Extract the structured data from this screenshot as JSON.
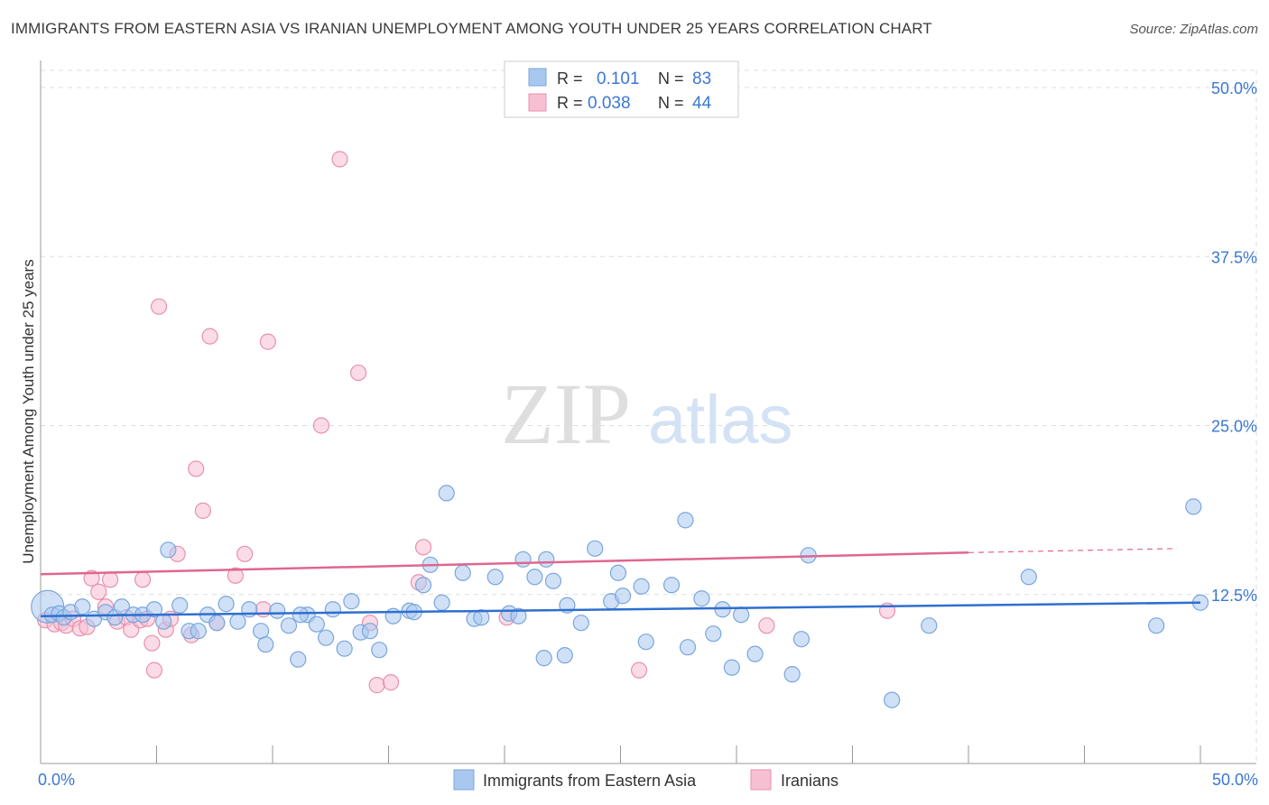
{
  "header": {
    "title": "IMMIGRANTS FROM EASTERN ASIA VS IRANIAN UNEMPLOYMENT AMONG YOUTH UNDER 25 YEARS CORRELATION CHART",
    "source": "Source: ZipAtlas.com"
  },
  "watermark": {
    "zip": "ZIP",
    "atlas": "atlas"
  },
  "legend_top": {
    "rows": [
      {
        "r_label": "R =",
        "r_value": "0.101",
        "n_label": "N =",
        "n_value": "83"
      },
      {
        "r_label": "R =",
        "r_value": "0.038",
        "n_label": "N =",
        "n_value": "44"
      }
    ]
  },
  "chart_data": {
    "type": "scatter",
    "title": "IMMIGRANTS FROM EASTERN ASIA VS IRANIAN UNEMPLOYMENT AMONG YOUTH UNDER 25 YEARS CORRELATION CHART",
    "xlabel": "",
    "ylabel": "Unemployment Among Youth under 25 years",
    "xlim": [
      0,
      50
    ],
    "ylim": [
      0,
      50
    ],
    "x_tick_labels": [
      "0.0%",
      "50.0%"
    ],
    "y_ticks": [
      12.5,
      25.0,
      37.5,
      50.0
    ],
    "y_tick_labels": [
      "12.5%",
      "25.0%",
      "37.5%",
      "50.0%"
    ],
    "colors": {
      "blue_fill": "#a9c8f0",
      "blue_stroke": "#7aa6dc",
      "blue_line": "#2e6fd0",
      "pink_fill": "#f7c0d2",
      "pink_stroke": "#e98fae",
      "pink_line": "#e0668f",
      "tick_text": "#3b78d4",
      "grid": "#dddddd"
    },
    "series": [
      {
        "name": "Immigrants from Eastern Asia",
        "r": 0.101,
        "n": 83,
        "trend": {
          "x0": 0,
          "y0": 10.9,
          "x1": 50,
          "y1": 11.9
        },
        "points": [
          [
            0.3,
            11.6
          ],
          [
            0.5,
            11.0
          ],
          [
            0.8,
            11.1
          ],
          [
            1.0,
            10.8
          ],
          [
            1.3,
            11.2
          ],
          [
            1.8,
            11.6
          ],
          [
            2.3,
            10.7
          ],
          [
            2.8,
            11.2
          ],
          [
            3.2,
            10.8
          ],
          [
            3.5,
            11.6
          ],
          [
            4.0,
            11.0
          ],
          [
            4.4,
            11.0
          ],
          [
            4.9,
            11.4
          ],
          [
            5.3,
            10.5
          ],
          [
            5.5,
            15.8
          ],
          [
            6.0,
            11.7
          ],
          [
            6.4,
            9.8
          ],
          [
            6.8,
            9.8
          ],
          [
            7.2,
            11.0
          ],
          [
            7.6,
            10.4
          ],
          [
            8.0,
            11.8
          ],
          [
            8.5,
            10.5
          ],
          [
            9.0,
            11.4
          ],
          [
            9.5,
            9.8
          ],
          [
            9.7,
            8.8
          ],
          [
            10.2,
            11.3
          ],
          [
            10.7,
            10.2
          ],
          [
            11.1,
            7.7
          ],
          [
            11.5,
            11.0
          ],
          [
            11.9,
            10.3
          ],
          [
            12.3,
            9.3
          ],
          [
            12.6,
            11.4
          ],
          [
            13.1,
            8.5
          ],
          [
            13.4,
            12.0
          ],
          [
            13.8,
            9.7
          ],
          [
            14.2,
            9.8
          ],
          [
            14.6,
            8.4
          ],
          [
            15.2,
            10.9
          ],
          [
            15.9,
            11.3
          ],
          [
            16.1,
            11.2
          ],
          [
            16.5,
            13.2
          ],
          [
            16.8,
            14.7
          ],
          [
            17.3,
            11.9
          ],
          [
            17.5,
            20.0
          ],
          [
            18.2,
            14.1
          ],
          [
            18.7,
            10.7
          ],
          [
            19.0,
            10.8
          ],
          [
            19.6,
            13.8
          ],
          [
            20.2,
            11.1
          ],
          [
            20.6,
            10.9
          ],
          [
            20.8,
            15.1
          ],
          [
            21.3,
            13.8
          ],
          [
            21.7,
            7.8
          ],
          [
            21.8,
            15.1
          ],
          [
            22.1,
            13.5
          ],
          [
            22.6,
            8.0
          ],
          [
            22.7,
            11.7
          ],
          [
            23.3,
            10.4
          ],
          [
            23.9,
            15.9
          ],
          [
            24.6,
            12.0
          ],
          [
            24.9,
            14.1
          ],
          [
            25.1,
            12.4
          ],
          [
            25.9,
            13.1
          ],
          [
            26.1,
            9.0
          ],
          [
            27.2,
            13.2
          ],
          [
            27.8,
            18.0
          ],
          [
            27.9,
            8.6
          ],
          [
            28.5,
            12.2
          ],
          [
            29.0,
            9.6
          ],
          [
            29.4,
            11.4
          ],
          [
            29.8,
            7.1
          ],
          [
            30.2,
            11.0
          ],
          [
            30.8,
            8.1
          ],
          [
            32.4,
            6.6
          ],
          [
            32.8,
            9.2
          ],
          [
            33.1,
            15.4
          ],
          [
            36.7,
            4.7
          ],
          [
            38.3,
            10.2
          ],
          [
            42.6,
            13.8
          ],
          [
            48.1,
            10.2
          ],
          [
            49.7,
            19.0
          ],
          [
            50.0,
            11.9
          ],
          [
            11.2,
            11.0
          ]
        ]
      },
      {
        "name": "Iranians",
        "r": 0.038,
        "n": 44,
        "trend": {
          "x0": 0,
          "y0": 14.0,
          "x1": 40,
          "y1": 15.6,
          "dashed_to_x": 49,
          "dashed_to_y": 15.9
        },
        "points": [
          [
            0.2,
            10.6
          ],
          [
            0.6,
            10.3
          ],
          [
            0.9,
            10.4
          ],
          [
            1.1,
            10.2
          ],
          [
            1.4,
            10.7
          ],
          [
            1.7,
            10.0
          ],
          [
            2.0,
            10.1
          ],
          [
            2.2,
            13.7
          ],
          [
            2.5,
            12.7
          ],
          [
            2.8,
            11.6
          ],
          [
            3.0,
            13.6
          ],
          [
            3.3,
            10.5
          ],
          [
            3.7,
            10.8
          ],
          [
            3.9,
            9.9
          ],
          [
            4.3,
            10.6
          ],
          [
            4.4,
            13.6
          ],
          [
            4.6,
            10.7
          ],
          [
            4.8,
            8.9
          ],
          [
            4.9,
            6.9
          ],
          [
            5.1,
            33.8
          ],
          [
            5.4,
            9.9
          ],
          [
            5.6,
            10.7
          ],
          [
            5.9,
            15.5
          ],
          [
            6.5,
            9.5
          ],
          [
            6.7,
            21.8
          ],
          [
            7.0,
            18.7
          ],
          [
            7.3,
            31.6
          ],
          [
            7.6,
            10.4
          ],
          [
            8.4,
            13.9
          ],
          [
            8.8,
            15.5
          ],
          [
            9.6,
            11.4
          ],
          [
            9.8,
            31.2
          ],
          [
            12.1,
            25.0
          ],
          [
            12.9,
            44.7
          ],
          [
            13.7,
            28.9
          ],
          [
            14.2,
            10.4
          ],
          [
            14.5,
            5.8
          ],
          [
            15.1,
            6.0
          ],
          [
            16.3,
            13.4
          ],
          [
            16.5,
            16.0
          ],
          [
            20.1,
            10.8
          ],
          [
            25.8,
            6.9
          ],
          [
            31.3,
            10.2
          ],
          [
            36.5,
            11.3
          ]
        ]
      }
    ],
    "legend": [
      "Immigrants from Eastern Asia",
      "Iranians"
    ]
  }
}
